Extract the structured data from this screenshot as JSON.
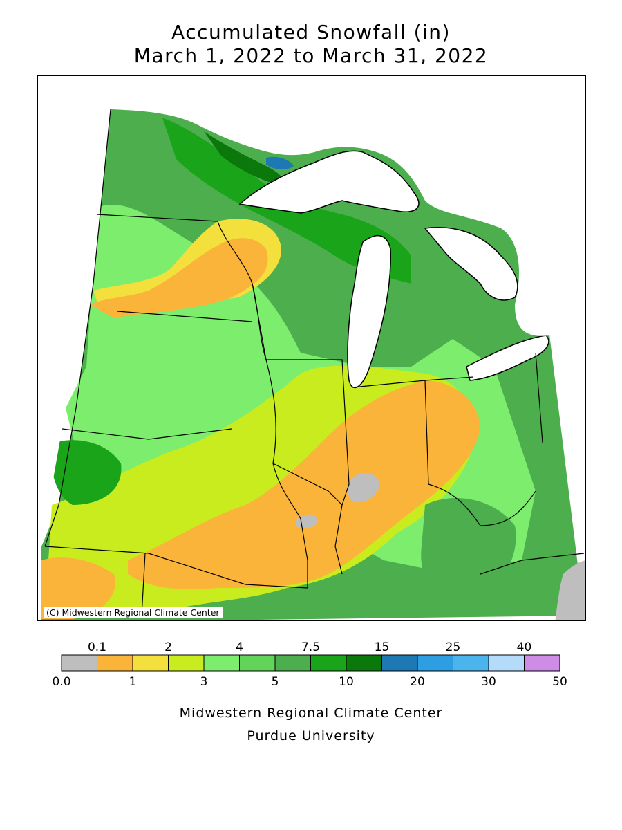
{
  "title": {
    "line1": "Accumulated Snowfall (in)",
    "line2": "March 1, 2022 to March 31, 2022"
  },
  "map": {
    "copyright": "(C) Midwestern Regional Climate Center",
    "region": "Upper Midwest / Great Lakes",
    "notable_areas": [
      {
        "label": "highest (15–25 in) near Lake Superior shore",
        "class_index": 9
      },
      {
        "label": "no snow areas (0.0–0.1 in)",
        "class_index": 0
      }
    ]
  },
  "legend": {
    "upper_labels": [
      "0.1",
      "2",
      "4",
      "7.5",
      "15",
      "25",
      "40"
    ],
    "lower_labels": [
      "0.0",
      "1",
      "3",
      "5",
      "10",
      "20",
      "30",
      "50"
    ],
    "colors": [
      "#bebebe",
      "#fbb43a",
      "#f3e03c",
      "#c8ec1e",
      "#7ded6e",
      "#62d45a",
      "#4cae4c",
      "#19a419",
      "#0a780a",
      "#1e78b4",
      "#2d9ee1",
      "#4bb4ed",
      "#b4dcfa",
      "#cd8ce6"
    ]
  },
  "footer": {
    "line1": "Midwestern Regional Climate Center",
    "line2": "Purdue University"
  }
}
